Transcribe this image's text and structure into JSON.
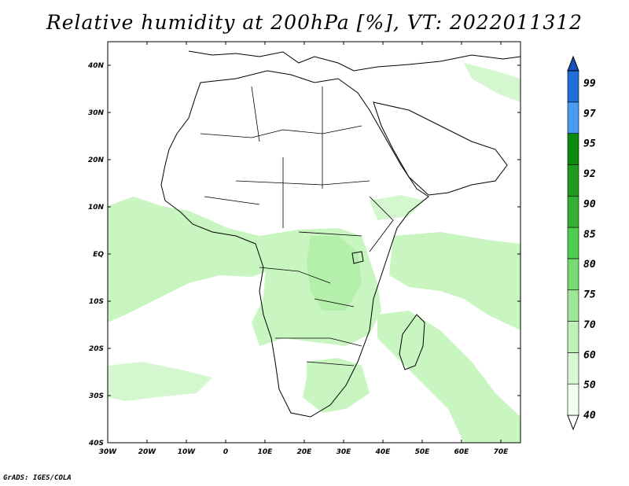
{
  "title": "Relative humidity at 200hPa [%], VT: 2022011312",
  "credit": "GrADS: IGES/COLA",
  "map": {
    "lon_range": [
      -30,
      75
    ],
    "lat_range": [
      -40,
      45
    ],
    "lon_ticks": [
      "30W",
      "20W",
      "10W",
      "0",
      "10E",
      "20E",
      "30E",
      "40E",
      "50E",
      "60E",
      "70E"
    ],
    "lat_ticks": [
      "40N",
      "30N",
      "20N",
      "10N",
      "EQ",
      "10S",
      "20S",
      "30S",
      "40S"
    ],
    "fill_color": "#c8f5c0"
  },
  "colorbar": {
    "levels": [
      "99",
      "97",
      "95",
      "92",
      "90",
      "85",
      "80",
      "75",
      "70",
      "60",
      "50",
      "40"
    ],
    "colors": [
      "#ffffff",
      "#f0fff0",
      "#d7f8d2",
      "#bff0b8",
      "#9fe598",
      "#77db72",
      "#4fcd4c",
      "#36b033",
      "#1f9a1e",
      "#0b8a0b",
      "#4a9bf0",
      "#1e6fd8",
      "#1451b8"
    ]
  }
}
